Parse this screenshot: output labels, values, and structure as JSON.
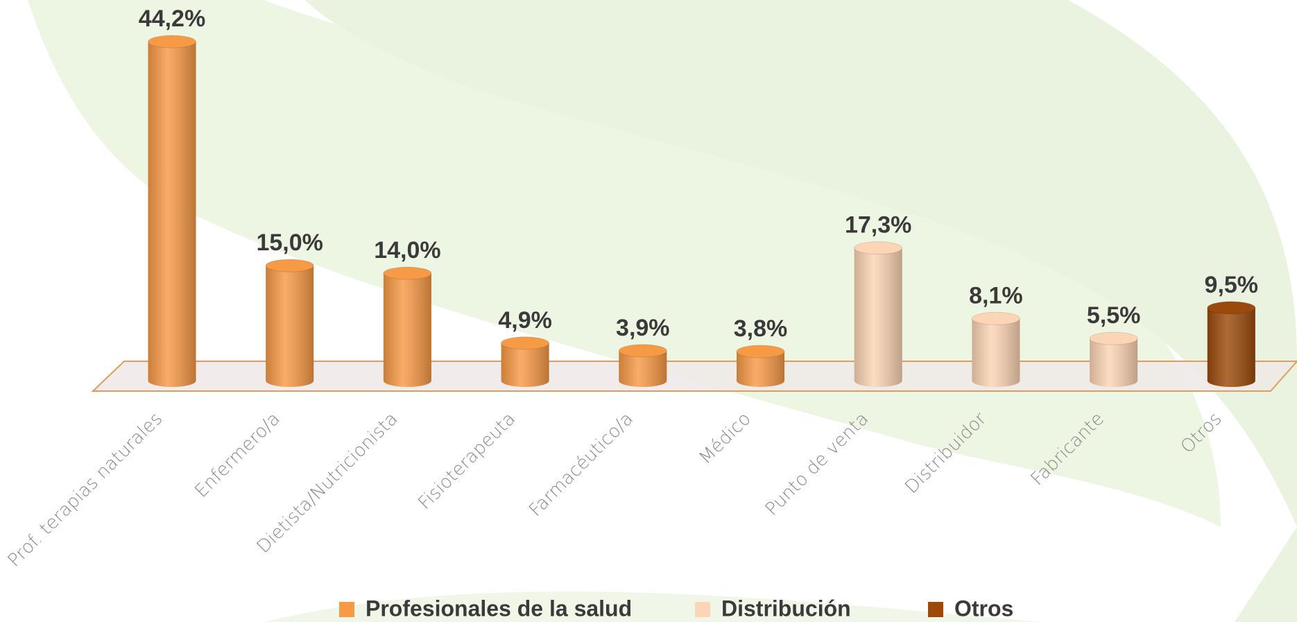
{
  "chart_data": {
    "type": "bar",
    "categories": [
      "Prof. terapias naturales",
      "Enfermero/a",
      "Dietista/Nutricionista",
      "Fisioterapeuta",
      "Farmacéutico/a",
      "Médico",
      "Punto de venta",
      "Distribuidor",
      "Fabricante",
      "Otros"
    ],
    "series": [
      {
        "name": "Profesionales de la salud",
        "color": "#f79a45",
        "values": [
          44.2,
          15.0,
          14.0,
          4.9,
          3.9,
          3.8,
          null,
          null,
          null,
          null
        ],
        "value_labels": [
          "44,2%",
          "15,0%",
          "14,0%",
          "4,9%",
          "3,9%",
          "3,8%",
          null,
          null,
          null,
          null
        ]
      },
      {
        "name": "Distribución",
        "color": "#fcd5b4",
        "values": [
          null,
          null,
          null,
          null,
          null,
          null,
          17.3,
          8.1,
          5.5,
          null
        ],
        "value_labels": [
          null,
          null,
          null,
          null,
          null,
          null,
          "17,3%",
          "8,1%",
          "5,5%",
          null
        ]
      },
      {
        "name": "Otros",
        "color": "#9c4a0b",
        "values": [
          null,
          null,
          null,
          null,
          null,
          null,
          null,
          null,
          null,
          9.5
        ],
        "value_labels": [
          null,
          null,
          null,
          null,
          null,
          null,
          null,
          null,
          null,
          "9,5%"
        ]
      }
    ]
  }
}
